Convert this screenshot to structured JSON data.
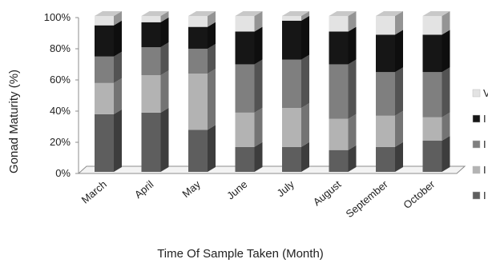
{
  "chart_data": {
    "type": "bar",
    "stacked": true,
    "percent": true,
    "three_d": true,
    "title": "",
    "xlabel": "Time Of Sample Taken (Month)",
    "ylabel": "Gonad Maturity (%)",
    "ylim": [
      0,
      100
    ],
    "yticks": [
      "0%",
      "20%",
      "40%",
      "60%",
      "80%",
      "100%"
    ],
    "grid": false,
    "legend_position": "right",
    "categories": [
      "March",
      "April",
      "May",
      "June",
      "July",
      "August",
      "September",
      "October"
    ],
    "series": [
      {
        "name": "I",
        "color": "#5e5e5e",
        "values": [
          37,
          38,
          27,
          16,
          16,
          14,
          16,
          20
        ]
      },
      {
        "name": "I",
        "color": "#b3b3b3",
        "values": [
          20,
          24,
          36,
          22,
          25,
          20,
          20,
          15
        ]
      },
      {
        "name": "I",
        "color": "#7f7f7f",
        "values": [
          17,
          18,
          16,
          31,
          31,
          35,
          28,
          29
        ]
      },
      {
        "name": "I",
        "color": "#161616",
        "values": [
          20,
          16,
          14,
          21,
          25,
          21,
          24,
          24
        ]
      },
      {
        "name": "V",
        "color": "#e3e3e3",
        "values": [
          6,
          4,
          7,
          10,
          3,
          10,
          12,
          12
        ]
      }
    ]
  }
}
